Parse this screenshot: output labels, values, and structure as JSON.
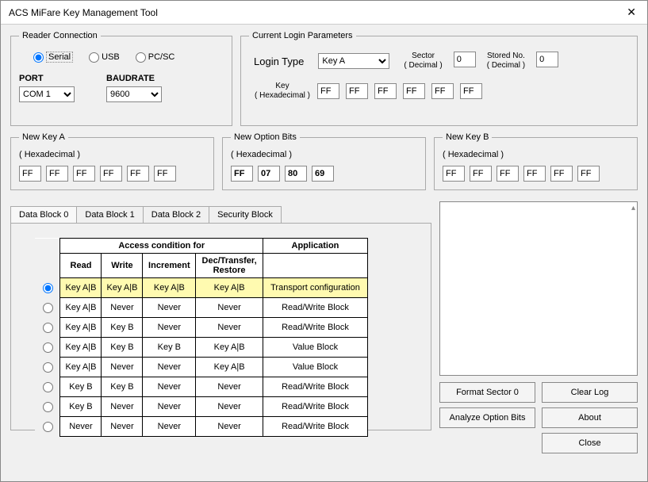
{
  "window": {
    "title": "ACS MiFare Key Management Tool"
  },
  "reader": {
    "legend": "Reader Connection",
    "radios": {
      "serial": "Serial",
      "usb": "USB",
      "pcsc": "PC/SC"
    },
    "port_label": "PORT",
    "baud_label": "BAUDRATE",
    "port_value": "COM 1",
    "baud_value": "9600"
  },
  "login": {
    "legend": "Current Login Parameters",
    "type_label": "Login Type",
    "type_value": "Key A",
    "sector_label1": "Sector",
    "sector_label2": "( Decimal )",
    "sector_value": "0",
    "stored_label1": "Stored No.",
    "stored_label2": "( Decimal )",
    "stored_value": "0",
    "key_label1": "Key",
    "key_label2": "( Hexadecimal )",
    "key": [
      "FF",
      "FF",
      "FF",
      "FF",
      "FF",
      "FF"
    ]
  },
  "nka": {
    "legend": "New Key A",
    "sub": "( Hexadecimal )",
    "vals": [
      "FF",
      "FF",
      "FF",
      "FF",
      "FF",
      "FF"
    ]
  },
  "opt": {
    "legend": "New Option Bits",
    "sub": "( Hexadecimal )",
    "vals": [
      "FF",
      "07",
      "80",
      "69"
    ]
  },
  "nkb": {
    "legend": "New Key B",
    "sub": "( Hexadecimal )",
    "vals": [
      "FF",
      "FF",
      "FF",
      "FF",
      "FF",
      "FF"
    ]
  },
  "tabs": {
    "t0": "Data Block 0",
    "t1": "Data Block 1",
    "t2": "Data Block 2",
    "t3": "Security Block"
  },
  "table": {
    "hdr_main": "Access condition for",
    "hdr_app": "Application",
    "cols": {
      "read": "Read",
      "write": "Write",
      "inc": "Increment",
      "dec": "Dec/Transfer,\nRestore"
    },
    "rows": [
      {
        "r": "Key A|B",
        "w": "Key A|B",
        "i": "Key A|B",
        "d": "Key A|B",
        "a": "Transport configuration",
        "sel": true
      },
      {
        "r": "Key A|B",
        "w": "Never",
        "i": "Never",
        "d": "Never",
        "a": "Read/Write Block",
        "sel": false
      },
      {
        "r": "Key A|B",
        "w": "Key B",
        "i": "Never",
        "d": "Never",
        "a": "Read/Write Block",
        "sel": false
      },
      {
        "r": "Key A|B",
        "w": "Key B",
        "i": "Key B",
        "d": "Key A|B",
        "a": "Value Block",
        "sel": false
      },
      {
        "r": "Key A|B",
        "w": "Never",
        "i": "Never",
        "d": "Key A|B",
        "a": "Value Block",
        "sel": false
      },
      {
        "r": "Key B",
        "w": "Key B",
        "i": "Never",
        "d": "Never",
        "a": "Read/Write Block",
        "sel": false
      },
      {
        "r": "Key B",
        "w": "Never",
        "i": "Never",
        "d": "Never",
        "a": "Read/Write Block",
        "sel": false
      },
      {
        "r": "Never",
        "w": "Never",
        "i": "Never",
        "d": "Never",
        "a": "Read/Write Block",
        "sel": false
      }
    ]
  },
  "buttons": {
    "format": "Format Sector 0",
    "clear": "Clear Log",
    "analyze": "Analyze Option Bits",
    "about": "About",
    "close": "Close"
  }
}
